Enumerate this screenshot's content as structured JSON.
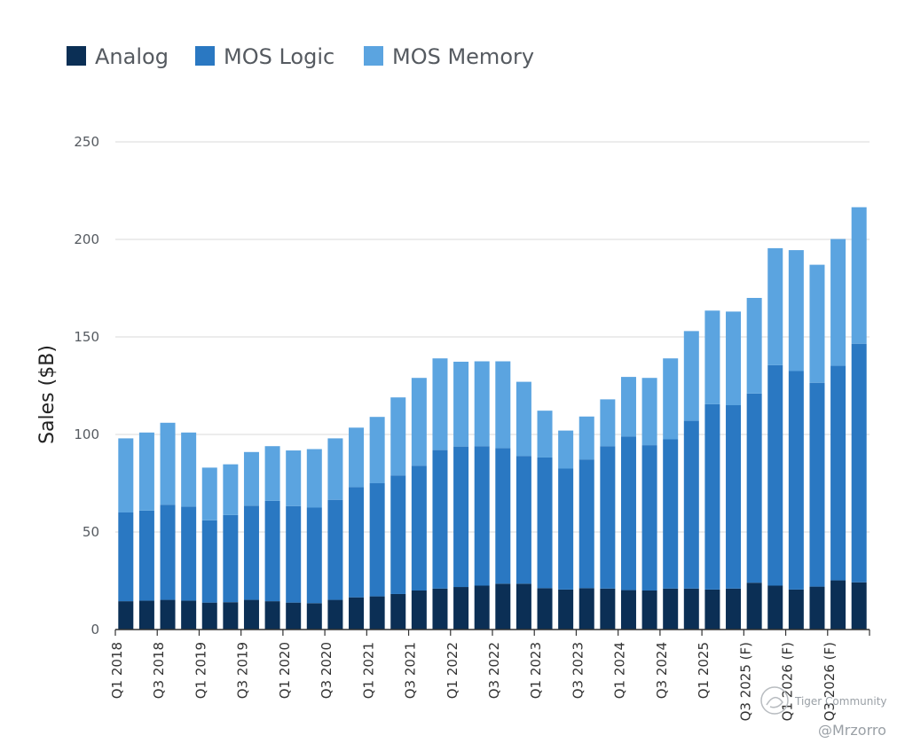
{
  "chart_data": {
    "type": "bar",
    "stacked": true,
    "ylabel": "Sales ($B)",
    "xlabel": "",
    "ylim": [
      0,
      250
    ],
    "yticks": [
      0,
      50,
      100,
      150,
      200,
      250
    ],
    "grid": true,
    "legend_position": "top-left",
    "categories": [
      "Q1 2018",
      "Q2 2018",
      "Q3 2018",
      "Q4 2018",
      "Q1 2019",
      "Q2 2019",
      "Q3 2019",
      "Q4 2019",
      "Q1 2020",
      "Q2 2020",
      "Q3 2020",
      "Q4 2020",
      "Q1 2021",
      "Q2 2021",
      "Q3 2021",
      "Q4 2021",
      "Q1 2022",
      "Q2 2022",
      "Q3 2022",
      "Q4 2022",
      "Q1 2023",
      "Q2 2023",
      "Q3 2023",
      "Q4 2023",
      "Q1 2024",
      "Q2 2024",
      "Q3 2024",
      "Q4 2024",
      "Q1 2025",
      "Q2 2025",
      "Q3 2025",
      "Q4 2025",
      "Q1 2026",
      "Q2 2026",
      "Q3 2026",
      "Q4 2026"
    ],
    "tick_labels": [
      {
        "index": 0,
        "label": "Q1 2018"
      },
      {
        "index": 2,
        "label": "Q3 2018"
      },
      {
        "index": 4,
        "label": "Q1 2019"
      },
      {
        "index": 6,
        "label": "Q3 2019"
      },
      {
        "index": 8,
        "label": "Q1 2020"
      },
      {
        "index": 10,
        "label": "Q3 2020"
      },
      {
        "index": 12,
        "label": "Q1 2021"
      },
      {
        "index": 14,
        "label": "Q3 2021"
      },
      {
        "index": 16,
        "label": "Q1 2022"
      },
      {
        "index": 18,
        "label": "Q3 2022"
      },
      {
        "index": 20,
        "label": "Q1 2023"
      },
      {
        "index": 22,
        "label": "Q3 2023"
      },
      {
        "index": 24,
        "label": "Q1 2024"
      },
      {
        "index": 26,
        "label": "Q3 2024"
      },
      {
        "index": 28,
        "label": "Q1 2025"
      },
      {
        "index": 30,
        "label": "Q3 2025 (F)"
      },
      {
        "index": 32,
        "label": "Q1 2026 (F)"
      },
      {
        "index": 34,
        "label": "Q3 2026 (F)"
      }
    ],
    "series": [
      {
        "name": "Analog",
        "color": "#0b2f55",
        "values": [
          14.5,
          14.8,
          15.2,
          14.8,
          13.8,
          14.0,
          15.2,
          14.5,
          13.8,
          13.5,
          15.2,
          16.5,
          17.0,
          18.2,
          20.0,
          21.0,
          21.8,
          22.5,
          23.5,
          23.5,
          21.2,
          20.5,
          21.2,
          21.0,
          20.2,
          20.0,
          21.0,
          21.0,
          20.5,
          21.0,
          24.0,
          22.5,
          20.5,
          22.0,
          25.2,
          24.2
        ]
      },
      {
        "name": "MOS Logic",
        "color": "#2a78c2",
        "values": [
          45.5,
          46.2,
          48.8,
          48.2,
          42.2,
          44.7,
          48.3,
          51.5,
          49.5,
          49.0,
          51.3,
          56.5,
          58.0,
          60.8,
          64.0,
          71.0,
          72.0,
          71.5,
          69.5,
          65.5,
          67.0,
          62.0,
          66.0,
          73.0,
          78.8,
          74.5,
          76.5,
          86.0,
          95.0,
          94.0,
          97.0,
          113.0,
          112.0,
          104.5,
          110.0,
          122.3
        ]
      },
      {
        "name": "MOS Memory",
        "color": "#5ba4e0",
        "values": [
          38.0,
          40.0,
          42.0,
          38.0,
          27.0,
          26.0,
          27.5,
          28.0,
          28.5,
          30.0,
          31.5,
          30.5,
          34.0,
          40.0,
          45.0,
          47.0,
          43.5,
          43.5,
          44.5,
          38.0,
          24.0,
          19.5,
          22.0,
          24.0,
          30.5,
          34.5,
          41.5,
          46.0,
          48.0,
          48.0,
          49.0,
          60.0,
          62.0,
          60.5,
          65.0,
          70.0
        ]
      }
    ]
  },
  "watermark": {
    "line1": "Tiger Community",
    "line2": "@Mrzorro"
  },
  "colors": {
    "grid": "#e6e6e6",
    "axis": "#333333"
  }
}
